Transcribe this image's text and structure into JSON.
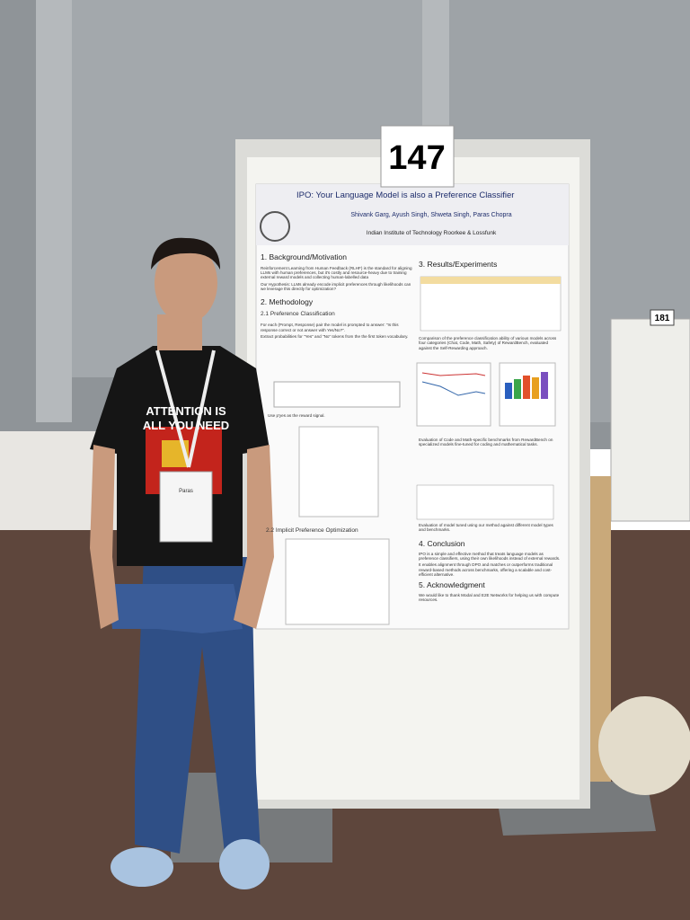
{
  "signs": {
    "board_number": "147",
    "neighbor_number": "181"
  },
  "poster": {
    "title": "IPO: Your Language Model is also a Preference Classifier",
    "authors": "Shivank Garg, Ayush Singh, Shweta Singh, Paras Chopra",
    "affiliation": "Indian Institute of Technology Roorkee & Lossfunk",
    "sections": [
      {
        "heading": "1. Background/Motivation",
        "lines": [
          "Reinforcement Learning from Human Feedback (RLHF) is the standard for aligning LLMs with human preferences, but it's costly and resource-heavy due to training external reward models and collecting human-labelled data",
          "Our Hypothesis: LLMs already encode implicit preferences through likelihoods can we leverage this directly for optimization?"
        ]
      },
      {
        "heading": "2. Methodology",
        "lines": []
      },
      {
        "heading": "2.1 Preference Classification",
        "lines": [
          "For each (Prompt, Response) pair the model is prompted to answer: \"Is this response correct or not answer with Yes/No?\".",
          "Extract probabilities for \"Yes\" and \"No\" tokens from the the first token vocabulary.",
          "Use p'yes as the reward signal."
        ]
      },
      {
        "heading": "2.2 Implicit Preference Optimization",
        "lines": []
      },
      {
        "heading": "3. Results/Experiments",
        "lines": [
          "Comparison of the preference classification ability of various models across four categories (Chat, Code, Math, Safety) of RewardBench, evaluated against the Self-Rewarding approach.",
          "Evaluation of Code and Math-specific benchmarks from RewardBench on specialized models fine-tuned for coding and mathematical tasks.",
          "Evaluation of model tuned using our method against different model types and benchmarks."
        ]
      },
      {
        "heading": "4. Conclusion",
        "lines": [
          "IPO is a simple and effective method that treats language models as preference classifiers, using their own likelihoods instead of external rewards.",
          "It enables alignment through DPO and matches or outperforms traditional reward-based methods across benchmarks, offering a scalable and cost-efficient alternative."
        ]
      },
      {
        "heading": "5. Acknowledgment",
        "lines": [
          "We would like to thank Modal and E2E Networks for helping us with compute resources."
        ]
      }
    ]
  },
  "shirt": {
    "lines": [
      "ATTENTION IS",
      "ALL YOU NEED"
    ]
  },
  "badge": {
    "name": "Paras"
  }
}
